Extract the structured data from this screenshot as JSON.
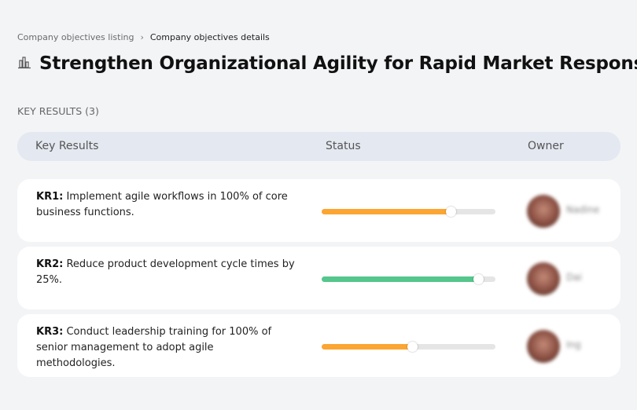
{
  "breadcrumb": {
    "parent": "Company objectives listing",
    "separator": "›",
    "current": "Company objectives details"
  },
  "title": {
    "icon": "building-chart-icon",
    "text": "Strengthen Organizational Agility for Rapid Market Response"
  },
  "section_label": "KEY RESULTS (3)",
  "table": {
    "headers": {
      "key_results": "Key Results",
      "status": "Status",
      "owner": "Owner"
    },
    "rows": [
      {
        "id": "KR1:",
        "text": " Implement agile workflows in 100% of core business functions.",
        "progress": 74,
        "color": "#fca532",
        "owner": "Nadine"
      },
      {
        "id": "KR2:",
        "text": " Reduce product development cycle times by 25%.",
        "progress": 90,
        "color": "#55c68c",
        "owner": "Dai"
      },
      {
        "id": "KR3:",
        "text": " Conduct leadership training for 100% of senior management to adopt agile methodologies.",
        "progress": 52,
        "color": "#fca532",
        "owner": "Ing"
      }
    ]
  }
}
